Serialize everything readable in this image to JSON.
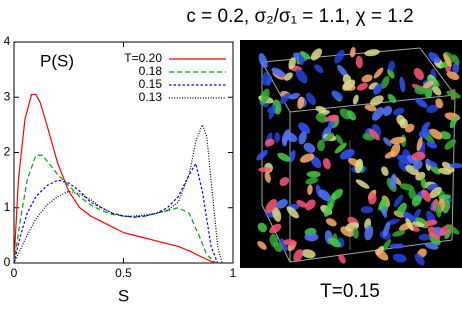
{
  "chart_data": {
    "type": "line",
    "title": "c = 0.2, σ₂/σ₁ = 1.1, χ = 1.2",
    "xlabel": "S",
    "ylabel": "P(S)",
    "xlim": [
      0,
      1
    ],
    "ylim": [
      0,
      4
    ],
    "xticks": [
      0,
      0.5,
      1
    ],
    "yticks": [
      0,
      1,
      2,
      3,
      4
    ],
    "legend": "top-right",
    "series": [
      {
        "name": "T=0.20",
        "color": "#ff0000",
        "dash": "solid",
        "x": [
          0,
          0.02,
          0.05,
          0.08,
          0.1,
          0.12,
          0.15,
          0.2,
          0.25,
          0.3,
          0.35,
          0.4,
          0.45,
          0.5,
          0.55,
          0.6,
          0.65,
          0.7,
          0.75,
          0.8,
          0.85,
          0.9,
          0.93
        ],
        "values": [
          0,
          1.5,
          2.6,
          3.05,
          3.05,
          2.9,
          2.5,
          1.8,
          1.3,
          1.0,
          0.85,
          0.75,
          0.65,
          0.55,
          0.5,
          0.45,
          0.4,
          0.35,
          0.3,
          0.22,
          0.12,
          0.03,
          0
        ]
      },
      {
        "name": "0.18",
        "color": "#00a000",
        "dash": "dashed",
        "x": [
          0,
          0.03,
          0.06,
          0.1,
          0.13,
          0.16,
          0.2,
          0.25,
          0.3,
          0.35,
          0.4,
          0.45,
          0.5,
          0.55,
          0.6,
          0.65,
          0.7,
          0.75,
          0.8,
          0.85,
          0.88,
          0.92
        ],
        "values": [
          0,
          0.8,
          1.5,
          1.95,
          1.95,
          1.8,
          1.6,
          1.4,
          1.2,
          1.05,
          0.95,
          0.88,
          0.85,
          0.83,
          0.85,
          0.9,
          0.95,
          1.0,
          0.9,
          0.45,
          0.15,
          0
        ]
      },
      {
        "name": "0.15",
        "color": "#0000ff",
        "dash": "dotted",
        "x": [
          0,
          0.03,
          0.06,
          0.1,
          0.15,
          0.2,
          0.25,
          0.3,
          0.35,
          0.4,
          0.45,
          0.5,
          0.55,
          0.6,
          0.65,
          0.7,
          0.75,
          0.8,
          0.83,
          0.86,
          0.9,
          0.93
        ],
        "values": [
          0,
          0.5,
          0.9,
          1.2,
          1.4,
          1.5,
          1.45,
          1.3,
          1.1,
          1.0,
          0.9,
          0.85,
          0.83,
          0.85,
          0.9,
          1.0,
          1.2,
          1.6,
          1.8,
          1.3,
          0.3,
          0
        ]
      },
      {
        "name": "0.13",
        "color": "#000000",
        "dash": "fine-dotted",
        "x": [
          0,
          0.03,
          0.06,
          0.1,
          0.15,
          0.2,
          0.25,
          0.3,
          0.35,
          0.4,
          0.45,
          0.5,
          0.55,
          0.6,
          0.65,
          0.7,
          0.75,
          0.8,
          0.83,
          0.86,
          0.88,
          0.9,
          0.93,
          0.95
        ],
        "values": [
          0,
          0.25,
          0.5,
          0.8,
          1.05,
          1.2,
          1.3,
          1.25,
          1.15,
          1.0,
          0.9,
          0.85,
          0.85,
          0.87,
          0.9,
          0.95,
          1.1,
          1.6,
          2.2,
          2.5,
          2.3,
          1.5,
          0.3,
          0
        ]
      }
    ]
  },
  "image": {
    "caption": "T=0.15"
  }
}
